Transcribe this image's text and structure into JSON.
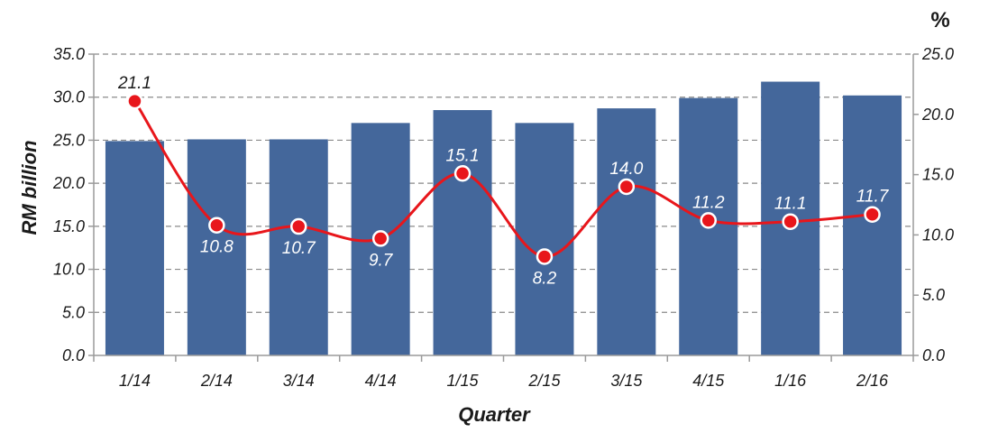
{
  "chart_data": {
    "type": "bar",
    "categories": [
      "1/14",
      "2/14",
      "3/14",
      "4/14",
      "1/15",
      "2/15",
      "3/15",
      "4/15",
      "1/16",
      "2/16"
    ],
    "series": [
      {
        "type": "bar",
        "axis": "left",
        "color": "#44679b",
        "values": [
          24.9,
          25.1,
          25.1,
          27.0,
          28.5,
          27.0,
          28.7,
          29.9,
          31.8,
          30.2
        ]
      },
      {
        "type": "line",
        "axis": "right",
        "color": "#e8161b",
        "smooth": true,
        "values": [
          21.1,
          10.8,
          10.7,
          9.7,
          15.1,
          8.2,
          14.0,
          11.2,
          11.1,
          11.7
        ],
        "labels": [
          "21.1",
          "10.8",
          "10.7",
          "9.7",
          "15.1",
          "8.2",
          "14.0",
          "11.2",
          "11.1",
          "11.7"
        ],
        "label_positions": [
          "above",
          "below",
          "below",
          "below",
          "above",
          "below",
          "above",
          "above",
          "above",
          "above"
        ],
        "label_colors": [
          "#1a1a1a",
          "#ffffff",
          "#ffffff",
          "#ffffff",
          "#ffffff",
          "#ffffff",
          "#ffffff",
          "#ffffff",
          "#ffffff",
          "#ffffff"
        ]
      }
    ],
    "xlabel": "Quarter",
    "ylabel": "RM billion",
    "y2label": "%",
    "ylim": [
      0,
      35
    ],
    "y2lim": [
      0,
      25
    ],
    "yticks": [
      "0.0",
      "5.0",
      "10.0",
      "15.0",
      "20.0",
      "25.0",
      "30.0",
      "35.0"
    ],
    "y2ticks": [
      "0.0",
      "5.0",
      "10.0",
      "15.0",
      "20.0",
      "25.0"
    ],
    "grid": "horizontal dashed",
    "legend": "none"
  }
}
